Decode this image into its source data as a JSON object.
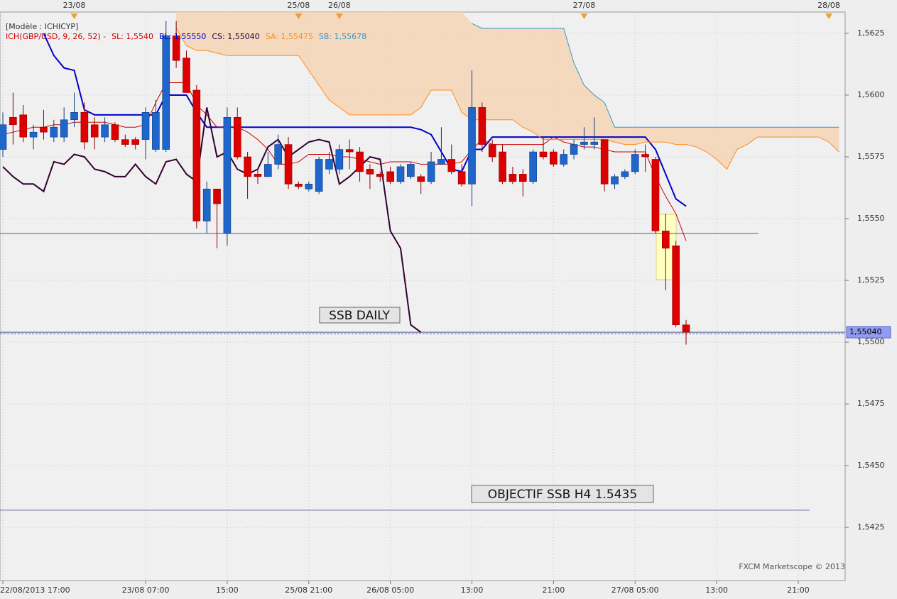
{
  "chart_data": {
    "type": "candlestick",
    "model_label": "[Modèle : ICHICYP]",
    "indicator_label": "ICH(GBP/USD, 9, 26, 52) -",
    "indicator_items": [
      {
        "text": "SL: 1,5540",
        "color": "#cc0000"
      },
      {
        "text": "BL: 1,55550",
        "color": "#0000cc"
      },
      {
        "text": "CS: 1,55040",
        "color": "#330033"
      },
      {
        "text": "SA: 1,55475",
        "color": "#ff8c1a"
      },
      {
        "text": "SB: 1,55678",
        "color": "#3399cc"
      }
    ],
    "up_color": "#1f66cc",
    "down_color": "#dd0000",
    "open": [
      1.5578,
      1.5591,
      1.5592,
      1.5583,
      1.5587,
      1.5583,
      1.5583,
      1.559,
      1.5593,
      1.5588,
      1.5583,
      1.5588,
      1.5582,
      1.5582,
      1.5582,
      1.5578,
      1.5578,
      1.5624,
      1.5615,
      1.5602,
      1.5549,
      1.5562,
      1.5544,
      1.5591,
      1.5575,
      1.5568,
      1.5567,
      1.5572,
      1.558,
      1.5564,
      1.5562,
      1.5561,
      1.557,
      1.557,
      1.5578,
      1.5577,
      1.557,
      1.5568,
      1.5569,
      1.5565,
      1.5567,
      1.5567,
      1.5565,
      1.5572,
      1.5574,
      1.5569,
      1.5564,
      1.5595,
      1.558,
      1.5577,
      1.5568,
      1.5568,
      1.5565,
      1.5577,
      1.5577,
      1.5572,
      1.5576,
      1.558,
      1.558,
      1.5582,
      1.5564,
      1.5567,
      1.5569,
      1.5576,
      1.5574,
      1.5545,
      1.5539,
      1.5507
    ],
    "high": [
      1.5593,
      1.5601,
      1.5596,
      1.5588,
      1.5594,
      1.559,
      1.5595,
      1.5601,
      1.5597,
      1.5591,
      1.5591,
      1.5589,
      1.5584,
      1.5583,
      1.5595,
      1.5598,
      1.563,
      1.563,
      1.5618,
      1.5604,
      1.5565,
      1.5562,
      1.5595,
      1.5595,
      1.5577,
      1.557,
      1.5577,
      1.5584,
      1.5583,
      1.5565,
      1.5565,
      1.5575,
      1.5577,
      1.558,
      1.5582,
      1.5579,
      1.5572,
      1.5569,
      1.5571,
      1.5572,
      1.5573,
      1.5568,
      1.5577,
      1.5587,
      1.558,
      1.5572,
      1.561,
      1.5597,
      1.5582,
      1.558,
      1.5571,
      1.557,
      1.5578,
      1.5583,
      1.5578,
      1.5578,
      1.5582,
      1.5587,
      1.5591,
      1.5582,
      1.5568,
      1.557,
      1.5578,
      1.558,
      1.5575,
      1.5552,
      1.5541,
      1.5509
    ],
    "low": [
      1.5575,
      1.558,
      1.5581,
      1.5578,
      1.5582,
      1.5581,
      1.5581,
      1.5587,
      1.5578,
      1.5578,
      1.5581,
      1.5581,
      1.5579,
      1.5578,
      1.5574,
      1.5577,
      1.5577,
      1.5611,
      1.5601,
      1.5546,
      1.5544,
      1.5538,
      1.5539,
      1.5574,
      1.5558,
      1.5564,
      1.5567,
      1.557,
      1.5562,
      1.5562,
      1.5561,
      1.556,
      1.5568,
      1.5568,
      1.557,
      1.5565,
      1.5562,
      1.5565,
      1.5564,
      1.5564,
      1.5566,
      1.556,
      1.5564,
      1.5572,
      1.5568,
      1.5563,
      1.5555,
      1.5577,
      1.5573,
      1.5564,
      1.5564,
      1.5559,
      1.5564,
      1.5574,
      1.5571,
      1.5571,
      1.5574,
      1.5578,
      1.5578,
      1.5561,
      1.5562,
      1.5566,
      1.5568,
      1.5569,
      1.5544,
      1.5521,
      1.5506,
      1.5499
    ],
    "close": [
      1.5588,
      1.5588,
      1.5583,
      1.5585,
      1.5585,
      1.5587,
      1.559,
      1.5593,
      1.5581,
      1.5583,
      1.5588,
      1.5582,
      1.558,
      1.558,
      1.5593,
      1.5593,
      1.5624,
      1.5614,
      1.5601,
      1.5549,
      1.5562,
      1.5556,
      1.5591,
      1.5575,
      1.5567,
      1.5567,
      1.5572,
      1.558,
      1.5564,
      1.5563,
      1.5564,
      1.5574,
      1.5574,
      1.5578,
      1.5577,
      1.5569,
      1.5568,
      1.5567,
      1.5565,
      1.5571,
      1.5572,
      1.5565,
      1.5573,
      1.5574,
      1.5569,
      1.5564,
      1.5595,
      1.558,
      1.5575,
      1.5565,
      1.5565,
      1.5565,
      1.5577,
      1.5575,
      1.5572,
      1.5576,
      1.558,
      1.5581,
      1.5581,
      1.5564,
      1.5567,
      1.5569,
      1.5576,
      1.5575,
      1.5545,
      1.5538,
      1.5507,
      1.5504
    ],
    "lines": [
      {
        "color": "#0000cc",
        "width": 2,
        "values": [
          null,
          null,
          null,
          null,
          1.5625,
          1.5616,
          1.5611,
          1.561,
          1.5594,
          1.5592,
          1.5592,
          1.5592,
          1.5592,
          1.5592,
          1.5592,
          1.5592,
          1.56,
          1.56,
          1.56,
          1.5593,
          1.5587,
          1.5587,
          1.5587,
          1.5587,
          1.5587,
          1.5587,
          1.5587,
          1.5587,
          1.5587,
          1.5587,
          1.5587,
          1.5587,
          1.5587,
          1.5587,
          1.5587,
          1.5587,
          1.5587,
          1.5587,
          1.5587,
          1.5587,
          1.5587,
          1.5586,
          1.5584,
          1.5577,
          1.557,
          1.5569,
          1.5578,
          1.5578,
          1.5583,
          1.5583,
          1.5583,
          1.5583,
          1.5583,
          1.5583,
          1.5583,
          1.5583,
          1.5583,
          1.5583,
          1.5583,
          1.5583,
          1.5583,
          1.5583,
          1.5583,
          1.5583,
          1.5578,
          1.5568,
          1.5558,
          1.5555
        ]
      },
      {
        "color": "#cc0000",
        "width": 1,
        "values": [
          1.5584,
          1.5585,
          1.5586,
          1.5587,
          1.5587,
          1.5588,
          1.5588,
          1.5589,
          1.5589,
          1.5589,
          1.5589,
          1.5588,
          1.5587,
          1.5587,
          1.5588,
          1.5597,
          1.5605,
          1.5605,
          1.5605,
          1.5596,
          1.5592,
          1.5587,
          1.5587,
          1.5587,
          1.5585,
          1.5582,
          1.5578,
          1.5572,
          1.5572,
          1.5573,
          1.5576,
          1.5576,
          1.5576,
          1.5575,
          1.5575,
          1.5574,
          1.5573,
          1.5572,
          1.5573,
          1.5573,
          1.5573,
          1.5572,
          1.5572,
          1.5572,
          1.5572,
          1.5573,
          1.5578,
          1.5582,
          1.558,
          1.558,
          1.558,
          1.558,
          1.558,
          1.558,
          1.5583,
          1.5581,
          1.558,
          1.5579,
          1.5579,
          1.5578,
          1.5577,
          1.5577,
          1.5577,
          1.5577,
          1.5567,
          1.5559,
          1.5552,
          1.5541
        ]
      },
      {
        "color": "#330033",
        "width": 2,
        "values": [
          1.5571,
          1.5567,
          1.5564,
          1.5564,
          1.5561,
          1.5573,
          1.5572,
          1.5576,
          1.5575,
          1.557,
          1.5569,
          1.5567,
          1.5567,
          1.5572,
          1.5567,
          1.5564,
          1.5573,
          1.5574,
          1.5568,
          1.5565,
          1.5595,
          1.5575,
          1.5577,
          1.557,
          1.5568,
          1.557,
          1.5579,
          1.5582,
          1.5575,
          1.5578,
          1.5581,
          1.5582,
          1.5581,
          1.5564,
          1.5567,
          1.5571,
          1.5575,
          1.5574,
          1.5545,
          1.5538,
          1.5507,
          1.5504
        ]
      },
      {
        "color": "#ff8c1a",
        "width": 1,
        "values": [
          null,
          null,
          null,
          null,
          null,
          null,
          null,
          null,
          null,
          null,
          null,
          null,
          null,
          null,
          null,
          null,
          null,
          1.5627,
          1.562,
          1.5618,
          1.5618,
          1.5617,
          1.5616,
          1.5616,
          1.5616,
          1.5616,
          1.5616,
          1.5616,
          1.5616,
          1.5616,
          1.561,
          1.5604,
          1.5598,
          1.5595,
          1.5592,
          1.5592,
          1.5592,
          1.5592,
          1.5592,
          1.5592,
          1.5592,
          1.5595,
          1.5602,
          1.5602,
          1.5602,
          1.5593,
          1.559,
          1.559,
          1.559,
          1.559,
          1.559,
          1.5587,
          1.5585,
          1.5582,
          1.5582,
          1.5582,
          1.5582,
          1.5582,
          1.5582,
          1.5582,
          1.5581,
          1.558,
          1.558,
          1.5581,
          1.5581,
          1.5581,
          1.558,
          1.558,
          1.5579,
          1.5577,
          1.5574,
          1.557,
          1.5578,
          1.558,
          1.5583,
          1.5583,
          1.5583,
          1.5583,
          1.5583,
          1.5583,
          1.5583,
          1.5581,
          1.5577
        ]
      },
      {
        "color": "#3399cc",
        "width": 1,
        "values": [
          null,
          null,
          null,
          null,
          null,
          null,
          null,
          null,
          null,
          null,
          null,
          null,
          null,
          null,
          null,
          null,
          null,
          null,
          null,
          null,
          null,
          null,
          null,
          null,
          null,
          null,
          null,
          null,
          null,
          null,
          null,
          null,
          null,
          null,
          null,
          null,
          null,
          null,
          null,
          null,
          null,
          null,
          null,
          null,
          null,
          null,
          1.5629,
          1.5627,
          1.5627,
          1.5627,
          1.5627,
          1.5627,
          1.5627,
          1.5627,
          1.5627,
          1.5627,
          1.5613,
          1.5604,
          1.56,
          1.5597,
          1.5587,
          1.5587,
          1.5587,
          1.5587,
          1.5587,
          1.5587,
          1.5587,
          1.5587,
          1.5587,
          1.5587,
          1.5587,
          1.5587,
          1.5587,
          1.5587,
          1.5587,
          1.5587,
          1.5587,
          1.5587,
          1.5587,
          1.5587,
          1.5587,
          1.5587,
          1.5587
        ]
      }
    ],
    "cloud_color": "#f5d3b3",
    "hlines": [
      1.5544,
      1.5504,
      1.5432
    ],
    "annotations": [
      "SSB DAILY",
      "OBJECTIF SSB H4 1.5435"
    ],
    "price_tag": {
      "value": 1.5504,
      "label": "1,55040"
    },
    "watermark": "FXCM Marketscope © 2013",
    "xlim": [
      -0.28,
      82.6
    ],
    "ylim": [
      1.54035,
      1.56336
    ],
    "xticks": [
      {
        "value": 0,
        "label": "22/08/2013 17:00"
      },
      {
        "value": 14,
        "label": "23/08 07:00"
      },
      {
        "value": 22,
        "label": "15:00"
      },
      {
        "value": 30,
        "label": "25/08 21:00"
      },
      {
        "value": 38,
        "label": "26/08 05:00"
      },
      {
        "value": 46,
        "label": "13:00"
      },
      {
        "value": 54,
        "label": "21:00"
      },
      {
        "value": 62,
        "label": "27/08 05:00"
      },
      {
        "value": 70,
        "label": "13:00"
      },
      {
        "value": 78,
        "label": "21:00"
      }
    ],
    "day_markers": [
      {
        "value": 7,
        "label": "23/08"
      },
      {
        "value": 29,
        "label": "25/08"
      },
      {
        "value": 33,
        "label": "26/08"
      },
      {
        "value": 57,
        "label": "27/08"
      },
      {
        "value": 81,
        "label": "28/08"
      }
    ],
    "yticks": [
      {
        "value": 1.5425,
        "label": "1,5425"
      },
      {
        "value": 1.545,
        "label": "1,5450"
      },
      {
        "value": 1.5475,
        "label": "1,5475"
      },
      {
        "value": 1.55,
        "label": "1,5500"
      },
      {
        "value": 1.5525,
        "label": "1,5525"
      },
      {
        "value": 1.555,
        "label": "1,5550"
      },
      {
        "value": 1.5575,
        "label": "1,5575"
      },
      {
        "value": 1.56,
        "label": "1,5600"
      },
      {
        "value": 1.5625,
        "label": "1,5625"
      }
    ],
    "grid": true
  }
}
